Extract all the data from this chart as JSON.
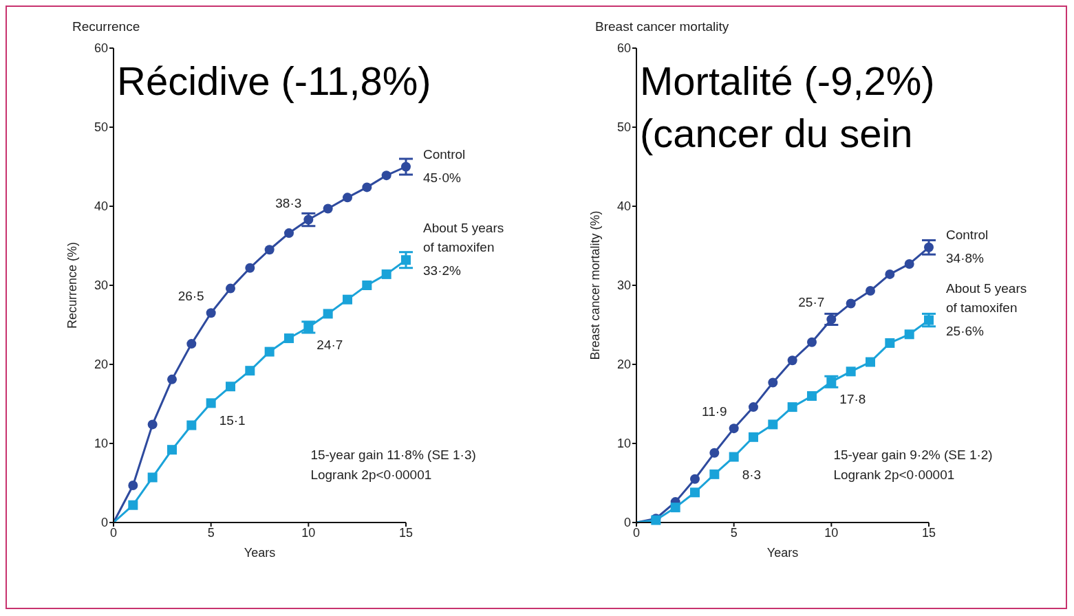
{
  "chart_data": [
    {
      "type": "line",
      "title": "Recurrence",
      "subtitle": "Récidive (-11,8%)",
      "xlabel": "Years",
      "ylabel": "Recurrence (%)",
      "x": [
        0,
        1,
        2,
        3,
        4,
        5,
        6,
        7,
        8,
        9,
        10,
        11,
        12,
        13,
        14,
        15
      ],
      "xlim": [
        0,
        15
      ],
      "xticks": [
        0,
        5,
        10,
        15
      ],
      "ylim": [
        0,
        60
      ],
      "yticks": [
        0,
        10,
        20,
        30,
        40,
        50,
        60
      ],
      "line_style": "solid",
      "series": [
        {
          "name": "Control",
          "color": "#2e4a9e",
          "marker": "circle",
          "values": [
            0,
            4.7,
            12.4,
            18.1,
            22.6,
            26.5,
            29.6,
            32.2,
            34.5,
            36.6,
            38.3,
            39.7,
            41.1,
            42.4,
            43.9,
            45.0
          ],
          "errors": [
            null,
            null,
            null,
            null,
            null,
            null,
            null,
            null,
            null,
            null,
            0.8,
            null,
            null,
            null,
            null,
            1.0
          ]
        },
        {
          "name": "About 5 years of tamoxifen",
          "color": "#1aa3d9",
          "marker": "square",
          "values": [
            0,
            2.2,
            5.7,
            9.2,
            12.3,
            15.1,
            17.2,
            19.2,
            21.6,
            23.3,
            24.7,
            26.4,
            28.2,
            30.0,
            31.4,
            33.2
          ],
          "errors": [
            null,
            null,
            null,
            null,
            null,
            null,
            null,
            null,
            null,
            null,
            0.7,
            null,
            null,
            null,
            null,
            1.0
          ]
        }
      ],
      "annotations": [
        {
          "text": "26·5",
          "x": 5,
          "y": 26.5
        },
        {
          "text": "38·3",
          "x": 10,
          "y": 38.3
        },
        {
          "text": "15·1",
          "x": 5,
          "y": 15.1
        },
        {
          "text": "24·7",
          "x": 10,
          "y": 24.7
        },
        {
          "text": "45·0%",
          "x": 15,
          "y": 45.0
        },
        {
          "text": "33·2%",
          "x": 15,
          "y": 33.2
        },
        "15-year gain 11·8% (SE 1·3)",
        "Logrank 2p<0·00001"
      ]
    },
    {
      "type": "line",
      "title": "Breast cancer mortality",
      "subtitle": "Mortalité (-9,2%)\n(cancer du sein",
      "xlabel": "Years",
      "ylabel": "Breast cancer mortality (%)",
      "x": [
        0,
        1,
        2,
        3,
        4,
        5,
        6,
        7,
        8,
        9,
        10,
        11,
        12,
        13,
        14,
        15
      ],
      "xlim": [
        0,
        15
      ],
      "xticks": [
        0,
        5,
        10,
        15
      ],
      "ylim": [
        0,
        60
      ],
      "yticks": [
        0,
        10,
        20,
        30,
        40,
        50,
        60
      ],
      "line_style": "solid",
      "series": [
        {
          "name": "Control",
          "color": "#2e4a9e",
          "marker": "circle",
          "values": [
            0,
            0.5,
            2.6,
            5.5,
            8.8,
            11.9,
            14.6,
            17.7,
            20.5,
            22.8,
            25.7,
            27.7,
            29.3,
            31.4,
            32.7,
            34.8
          ],
          "errors": [
            null,
            null,
            null,
            null,
            null,
            null,
            null,
            null,
            null,
            null,
            0.7,
            null,
            null,
            null,
            null,
            0.9
          ]
        },
        {
          "name": "About 5 years of tamoxifen",
          "color": "#1aa3d9",
          "marker": "square",
          "values": [
            0,
            0.3,
            1.9,
            3.8,
            6.1,
            8.3,
            10.8,
            12.4,
            14.6,
            16.0,
            17.8,
            19.1,
            20.3,
            22.7,
            23.8,
            25.6
          ],
          "errors": [
            null,
            null,
            null,
            null,
            null,
            null,
            null,
            null,
            null,
            null,
            0.7,
            null,
            null,
            null,
            null,
            0.8
          ]
        }
      ],
      "annotations": [
        {
          "text": "11·9",
          "x": 5,
          "y": 11.9
        },
        {
          "text": "25·7",
          "x": 10,
          "y": 25.7
        },
        {
          "text": "8·3",
          "x": 5,
          "y": 8.3
        },
        {
          "text": "17·8",
          "x": 10,
          "y": 17.8
        },
        {
          "text": "34·8%",
          "x": 15,
          "y": 34.8
        },
        {
          "text": "25·6%",
          "x": 15,
          "y": 25.6
        },
        "15-year gain 9·2% (SE 1·2)",
        "Logrank 2p<0·00001"
      ]
    }
  ]
}
